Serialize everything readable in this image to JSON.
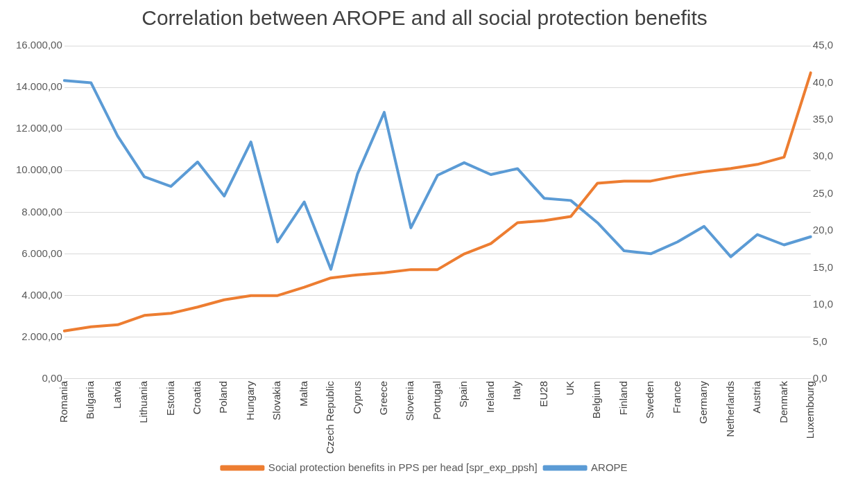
{
  "chart_data": {
    "type": "line",
    "title": "Correlation between AROPE and all social protection benefits",
    "categories": [
      "Romania",
      "Bulgaria",
      "Latvia",
      "Lithuania",
      "Estonia",
      "Croatia",
      "Poland",
      "Hungary",
      "Slovakia",
      "Malta",
      "Czech Republic",
      "Cyprus",
      "Greece",
      "Slovenia",
      "Portugal",
      "Spain",
      "Ireland",
      "Italy",
      "EU28",
      "UK",
      "Belgium",
      "Finland",
      "Sweden",
      "France",
      "Germany",
      "Netherlands",
      "Austria",
      "Denmark",
      "Luxembourg"
    ],
    "series": [
      {
        "name": "Social protection benefits in PPS per head [spr_exp_ppsh]",
        "color": "#ed7d31",
        "values": [
          2300,
          2500,
          2600,
          3050,
          3150,
          3450,
          3800,
          4000,
          4000,
          4400,
          4850,
          5000,
          5100,
          5250,
          5250,
          6000,
          6500,
          7500,
          7600,
          7800,
          9400,
          9500,
          9500,
          9750,
          9950,
          10100,
          10300,
          10650,
          14700
        ]
      },
      {
        "name": "AROPE",
        "color": "#5b9bd5",
        "axis": "y2",
        "values": [
          40.3,
          40.0,
          32.8,
          27.3,
          26.0,
          29.3,
          24.7,
          32.0,
          18.5,
          23.9,
          14.8,
          27.7,
          36.0,
          20.4,
          27.5,
          29.2,
          27.6,
          28.4,
          24.4,
          24.1,
          21.1,
          17.3,
          16.9,
          18.5,
          20.6,
          16.5,
          19.5,
          18.1,
          19.2
        ]
      }
    ],
    "ylim": [
      0,
      16000
    ],
    "yticks": [
      {
        "value": 0,
        "label": "0,00"
      },
      {
        "value": 2000,
        "label": "2.000,00"
      },
      {
        "value": 4000,
        "label": "4.000,00"
      },
      {
        "value": 6000,
        "label": "6.000,00"
      },
      {
        "value": 8000,
        "label": "8.000,00"
      },
      {
        "value": 10000,
        "label": "10.000,00"
      },
      {
        "value": 12000,
        "label": "12.000,00"
      },
      {
        "value": 14000,
        "label": "14.000,00"
      },
      {
        "value": 16000,
        "label": "16.000,00"
      }
    ],
    "y2lim": [
      0,
      45
    ],
    "y2ticks": [
      {
        "value": 0,
        "label": "0,0"
      },
      {
        "value": 5,
        "label": "5,0"
      },
      {
        "value": 10,
        "label": "10,0"
      },
      {
        "value": 15,
        "label": "15,0"
      },
      {
        "value": 20,
        "label": "20,0"
      },
      {
        "value": 25,
        "label": "25,0"
      },
      {
        "value": 30,
        "label": "30,0"
      },
      {
        "value": 35,
        "label": "35,0"
      },
      {
        "value": 40,
        "label": "40,0"
      },
      {
        "value": 45,
        "label": "45,0"
      }
    ],
    "grid": "y",
    "legend": "bottom",
    "marker": "none",
    "line_style": "solid"
  }
}
